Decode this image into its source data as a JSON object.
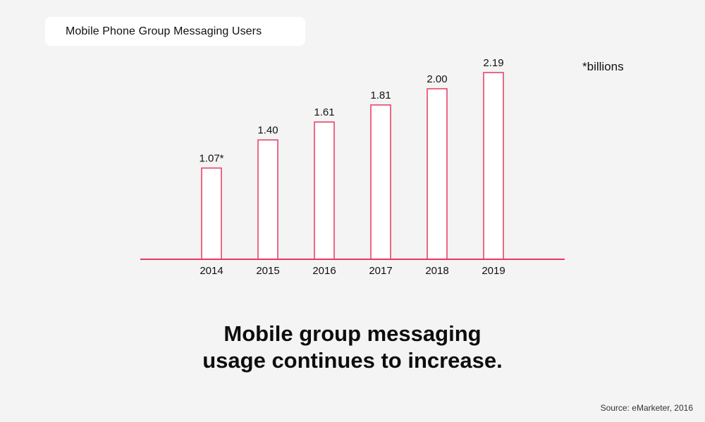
{
  "title": "Mobile Phone Group Messaging Users",
  "unit_note": "*billions",
  "headline": {
    "line1": "Mobile group messaging",
    "line2": "usage continues to increase."
  },
  "source": "Source: eMarketer, 2016",
  "colors": {
    "bar_stroke": "#e8385f",
    "bar_fill": "#ffffff",
    "baseline": "#e8385f",
    "background": "#f4f4f4"
  },
  "chart_data": {
    "type": "bar",
    "title": "Mobile Phone Group Messaging Users",
    "categories": [
      "2014",
      "2015",
      "2016",
      "2017",
      "2018",
      "2019"
    ],
    "values": [
      1.07,
      1.4,
      1.61,
      1.81,
      2.0,
      2.19
    ],
    "data_labels": [
      "1.07*",
      "1.40",
      "1.61",
      "1.81",
      "2.00",
      "2.19"
    ],
    "unit": "*billions",
    "ylim": [
      0,
      2.19
    ],
    "grid": false,
    "legend": "none"
  }
}
